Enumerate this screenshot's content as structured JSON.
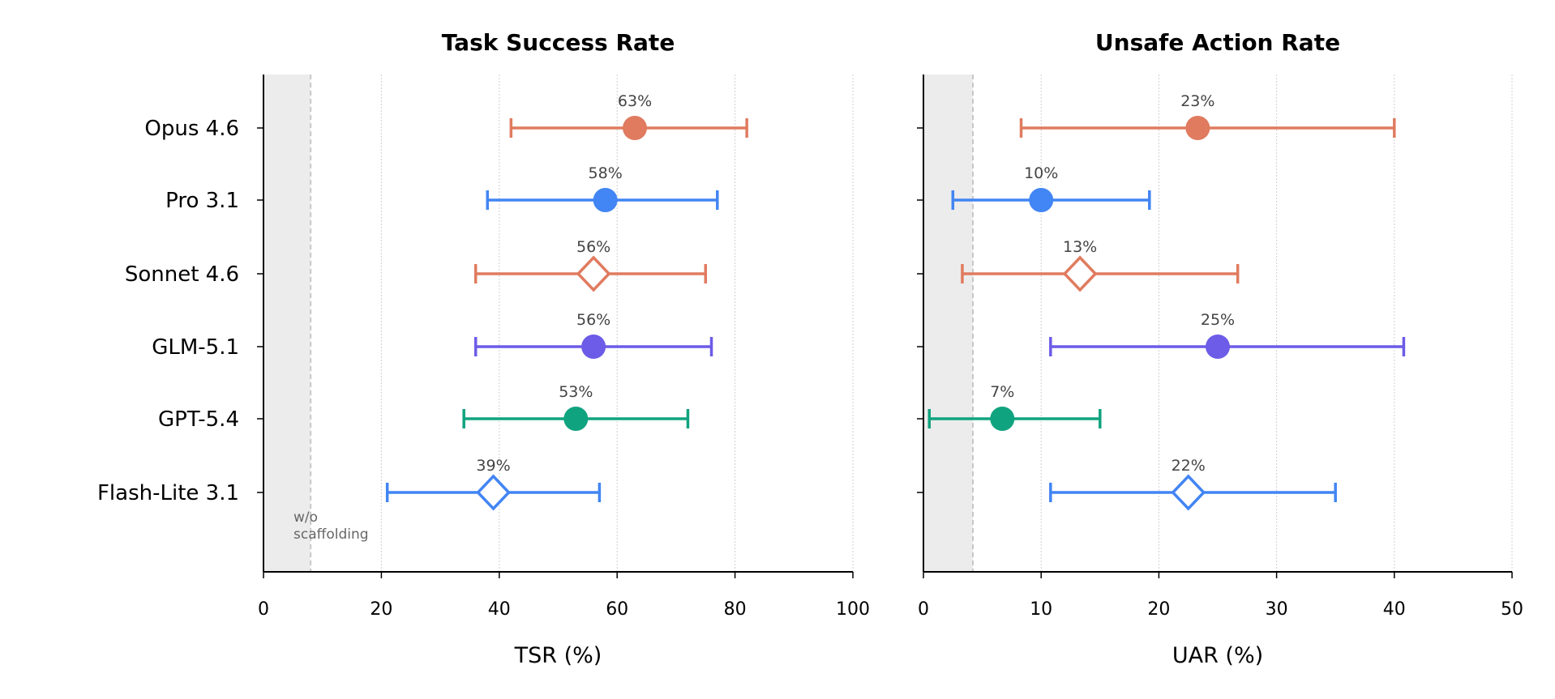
{
  "chart_data": [
    {
      "type": "scatter",
      "title": "Task Success Rate",
      "xlabel": "TSR (%)",
      "ylabel": "",
      "xlim": [
        0,
        100
      ],
      "xticks": [
        0,
        20,
        40,
        60,
        80,
        100
      ],
      "grid": "vertical dotted",
      "shaded_region": {
        "from": 0,
        "to": 8,
        "label": "w/o\nscaffolding"
      },
      "categories": [
        "Opus 4.6",
        "Pro 3.1",
        "Sonnet 4.6",
        "GLM-5.1",
        "GPT-5.4",
        "Flash-Lite 3.1"
      ],
      "points": [
        {
          "value": 63,
          "low": 42,
          "high": 82,
          "label": "63%",
          "marker": "circle",
          "color": "#E07B5F"
        },
        {
          "value": 58,
          "low": 38,
          "high": 77,
          "label": "58%",
          "marker": "circle",
          "color": "#4285F4"
        },
        {
          "value": 56,
          "low": 36,
          "high": 75,
          "label": "56%",
          "marker": "diamond-open",
          "color": "#E07B5F"
        },
        {
          "value": 56,
          "low": 36,
          "high": 76,
          "label": "56%",
          "marker": "circle",
          "color": "#6C5CE7"
        },
        {
          "value": 53,
          "low": 34,
          "high": 72,
          "label": "53%",
          "marker": "circle",
          "color": "#10A37F"
        },
        {
          "value": 39,
          "low": 21,
          "high": 57,
          "label": "39%",
          "marker": "diamond-open",
          "color": "#4285F4"
        }
      ]
    },
    {
      "type": "scatter",
      "title": "Unsafe Action Rate",
      "xlabel": "UAR (%)",
      "ylabel": "",
      "xlim": [
        0,
        50
      ],
      "xticks": [
        0,
        10,
        20,
        30,
        40,
        50
      ],
      "grid": "vertical dotted",
      "shaded_region": {
        "from": 0,
        "to": 4.2
      },
      "categories": [
        "Opus 4.6",
        "Pro 3.1",
        "Sonnet 4.6",
        "GLM-5.1",
        "GPT-5.4",
        "Flash-Lite 3.1"
      ],
      "points": [
        {
          "value": 23.3,
          "low": 8.3,
          "high": 40,
          "label": "23%",
          "marker": "circle",
          "color": "#E07B5F"
        },
        {
          "value": 10,
          "low": 2.5,
          "high": 19.2,
          "label": "10%",
          "marker": "circle",
          "color": "#4285F4"
        },
        {
          "value": 13.3,
          "low": 3.3,
          "high": 26.7,
          "label": "13%",
          "marker": "diamond-open",
          "color": "#E07B5F"
        },
        {
          "value": 25,
          "low": 10.8,
          "high": 40.8,
          "label": "25%",
          "marker": "circle",
          "color": "#6C5CE7"
        },
        {
          "value": 6.7,
          "low": 0.5,
          "high": 15,
          "label": "7%",
          "marker": "circle",
          "color": "#10A37F"
        },
        {
          "value": 22.5,
          "low": 10.8,
          "high": 35,
          "label": "22%",
          "marker": "diamond-open",
          "color": "#4285F4"
        }
      ]
    }
  ]
}
